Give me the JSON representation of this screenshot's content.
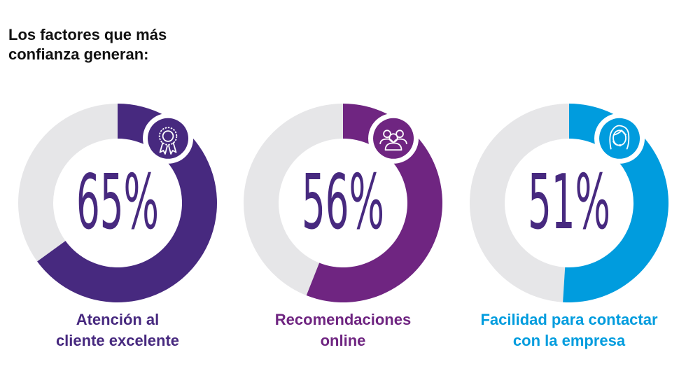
{
  "title_lines": [
    "Los factores que más",
    "confianza generan:"
  ],
  "colors": {
    "track": "#e6e6e8",
    "number": "#47297f",
    "icon_line": "#ffffff"
  },
  "chart_data": {
    "type": "pie",
    "title": "Los factores que más confianza generan:",
    "unit": "%",
    "max": 100,
    "items": [
      {
        "label_lines": [
          "Atención al",
          "cliente excelente"
        ],
        "value": 65,
        "display": "65%",
        "color": "#47297f",
        "icon": "ribbon-award-icon"
      },
      {
        "label_lines": [
          "Recomendaciones",
          "online"
        ],
        "value": 56,
        "display": "56%",
        "color": "#6f2581",
        "icon": "people-group-icon"
      },
      {
        "label_lines": [
          "Facilidad para contactar",
          "con la empresa"
        ],
        "value": 51,
        "display": "51%",
        "color": "#009cde",
        "icon": "support-agent-icon"
      }
    ]
  }
}
